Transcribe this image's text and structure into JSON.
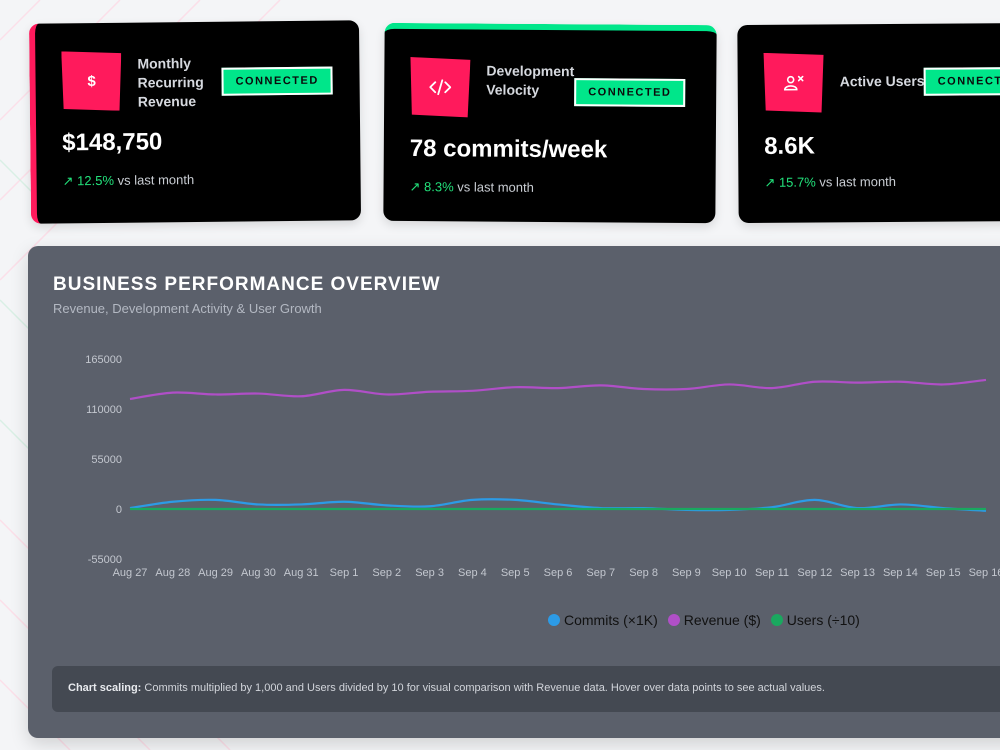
{
  "colors": {
    "accent_pink": "#ff1a5c",
    "accent_green": "#00e68a",
    "commits": "#2c9be6",
    "revenue": "#b04fc7",
    "users": "#1aa85f"
  },
  "cards": [
    {
      "icon": "dollar-icon",
      "icon_text": "$",
      "title": "Monthly Recurring Revenue",
      "badge": "CONNECTED",
      "value": "$148,750",
      "change": "↗ 12.5%",
      "change_suffix": " vs last month"
    },
    {
      "icon": "code-icon",
      "title": "Development Velocity",
      "badge": "CONNECTED",
      "value": "78 commits/week",
      "change": "↗ 8.3%",
      "change_suffix": " vs last month"
    },
    {
      "icon": "users-icon",
      "title": "Active Users",
      "badge": "CONNECTED",
      "value": "8.6K",
      "change": "↗ 15.7%",
      "change_suffix": " vs last month"
    }
  ],
  "panel": {
    "title": "BUSINESS PERFORMANCE OVERVIEW",
    "subtitle": "Revenue, Development Activity & User Growth",
    "note_label": "Chart scaling:",
    "note_text": " Commits multiplied by 1,000 and Users divided by 10 for visual comparison with Revenue data. Hover over data points to see actual values."
  },
  "chart_data": {
    "type": "line",
    "x": [
      "Aug 27",
      "Aug 28",
      "Aug 29",
      "Aug 30",
      "Aug 31",
      "Sep 1",
      "Sep 2",
      "Sep 3",
      "Sep 4",
      "Sep 5",
      "Sep 6",
      "Sep 7",
      "Sep 8",
      "Sep 9",
      "Sep 10",
      "Sep 11",
      "Sep 12",
      "Sep 13",
      "Sep 14",
      "Sep 15",
      "Sep 16"
    ],
    "y_ticks": [
      165000,
      110000,
      55000,
      0,
      -55000
    ],
    "ylim": [
      -55000,
      165000
    ],
    "grid": false,
    "legend_position": "bottom",
    "series": [
      {
        "name": "Commits (×1K)",
        "color": "#2c9be6",
        "values": [
          1000,
          8000,
          10000,
          5000,
          5000,
          8000,
          4000,
          3000,
          10000,
          10000,
          5000,
          1000,
          1000,
          -1000,
          -1000,
          2000,
          10000,
          1000,
          5000,
          1000,
          -2000
        ]
      },
      {
        "name": "Revenue ($)",
        "color": "#b04fc7",
        "values": [
          121000,
          128000,
          126000,
          127000,
          124000,
          131000,
          126000,
          129000,
          130000,
          134000,
          133000,
          136000,
          132000,
          132000,
          137000,
          133000,
          140000,
          139000,
          140000,
          137000,
          142000
        ]
      },
      {
        "name": "Users (÷10)",
        "color": "#1aa85f",
        "values": [
          0,
          0,
          0,
          0,
          0,
          0,
          0,
          0,
          0,
          0,
          0,
          0,
          0,
          0,
          0,
          0,
          0,
          0,
          0,
          0,
          0
        ]
      }
    ]
  }
}
